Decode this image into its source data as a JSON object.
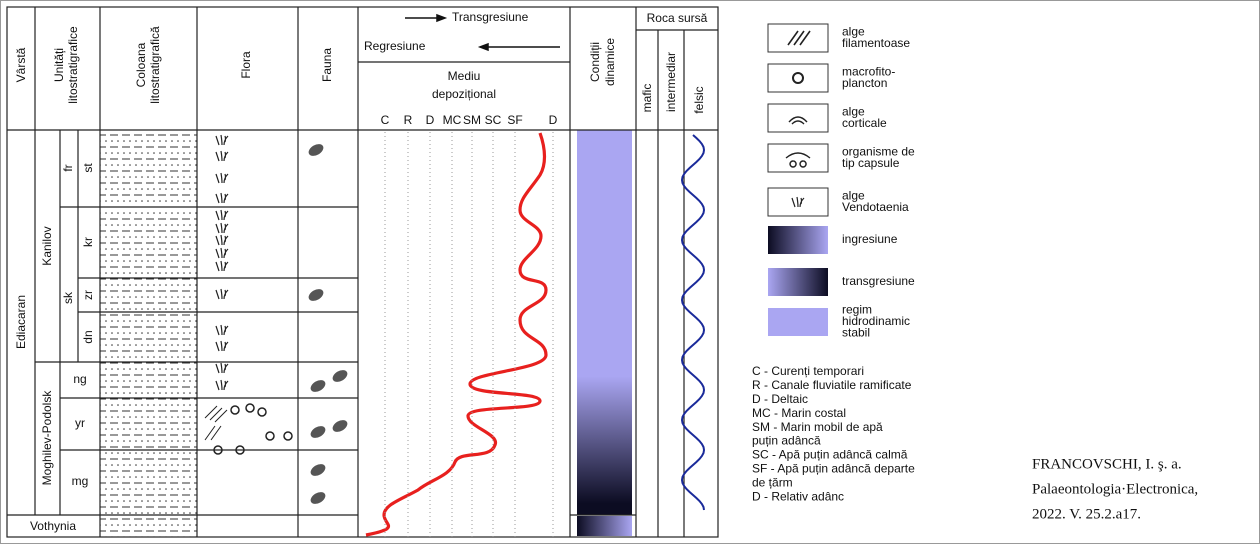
{
  "header": {
    "age": "Vârstă",
    "units": [
      "Unități",
      "litostratigrafice"
    ],
    "column": [
      "Coloana",
      "litostratigrafică"
    ],
    "flora": "Flora",
    "fauna": "Fauna",
    "transgression": "Transgresiune",
    "regression": "Regresiune",
    "environment": [
      "Mediu",
      "depozițional"
    ],
    "scale": [
      "C",
      "R",
      "D",
      "MC",
      "SM",
      "SC",
      "SF",
      "D"
    ],
    "dynamics": [
      "Condiții",
      "dinamice"
    ],
    "source": "Roca sursă",
    "source_types": [
      "mafic",
      "intermediar",
      "felsic"
    ]
  },
  "units": {
    "system": "Ediacaran",
    "vothynia": "Vothynia",
    "kanilov": "Kanilov",
    "moghilev": "Moghilev-Podolsk",
    "formations": [
      "fr",
      "sk"
    ],
    "members": [
      "st",
      "kr",
      "zr",
      "dn"
    ],
    "moghilev_members": [
      "ng",
      "yr",
      "mg"
    ]
  },
  "legend": [
    [
      "alge",
      "filamentoase"
    ],
    [
      "macrofito-",
      "plancton"
    ],
    [
      "alge",
      "corticale"
    ],
    [
      "organisme de",
      "tip capsule"
    ],
    [
      "alge",
      "Vendotaenia"
    ],
    [
      "ingresiune"
    ],
    [
      "transgresiune"
    ],
    [
      "regim",
      "hidrodinamic",
      "stabil"
    ]
  ],
  "abbreviations": [
    "C - Curenți temporari",
    "R - Canale fluviatile ramificate",
    "D - Deltaic",
    "MC - Marin costal",
    "SM - Marin mobil de apă",
    "puțin adâncă",
    "SC - Apă puțin adâncă calmă",
    "SF - Apă puțin adâncă departe",
    "de țărm",
    "D - Relativ adânc"
  ],
  "citation": [
    "FRANCOVSCHI, I. ş. a.",
    "Palaeontologia·Electronica,",
    "2022. V. 25.2.a17."
  ]
}
